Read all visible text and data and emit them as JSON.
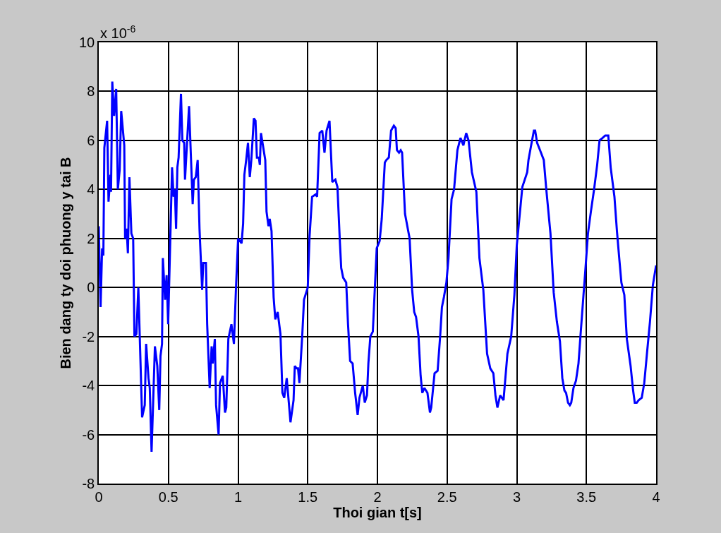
{
  "chart_data": {
    "type": "line",
    "xlabel": "Thoi gian t[s]",
    "ylabel": "Bien dang ty doi phuong y tai B",
    "annotations": [
      "x 10$^{-6}$"
    ],
    "x": [
      0,
      0.013,
      0.024,
      0.033,
      0.04,
      0.06,
      0.07,
      0.084,
      0.088,
      0.097,
      0.11,
      0.125,
      0.137,
      0.15,
      0.161,
      0.183,
      0.189,
      0.2,
      0.209,
      0.22,
      0.234,
      0.247,
      0.256,
      0.27,
      0.284,
      0.311,
      0.33,
      0.34,
      0.357,
      0.366,
      0.379,
      0.403,
      0.42,
      0.434,
      0.443,
      0.454,
      0.46,
      0.476,
      0.487,
      0.498,
      0.513,
      0.526,
      0.537,
      0.546,
      0.555,
      0.564,
      0.573,
      0.59,
      0.6,
      0.613,
      0.619,
      0.648,
      0.674,
      0.683,
      0.696,
      0.71,
      0.723,
      0.742,
      0.75,
      0.769,
      0.778,
      0.796,
      0.81,
      0.818,
      0.833,
      0.842,
      0.86,
      0.87,
      0.89,
      0.906,
      0.915,
      0.93,
      0.952,
      0.97,
      0.985,
      1.0,
      1.025,
      1.036,
      1.045,
      1.058,
      1.071,
      1.084,
      1.095,
      1.113,
      1.125,
      1.135,
      1.149,
      1.156,
      1.164,
      1.195,
      1.204,
      1.218,
      1.227,
      1.24,
      1.255,
      1.267,
      1.284,
      1.304,
      1.318,
      1.331,
      1.349,
      1.376,
      1.398,
      1.407,
      1.42,
      1.43,
      1.44,
      1.46,
      1.473,
      1.5,
      1.513,
      1.531,
      1.558,
      1.567,
      1.585,
      1.604,
      1.62,
      1.635,
      1.656,
      1.676,
      1.698,
      1.713,
      1.731,
      1.74,
      1.754,
      1.776,
      1.789,
      1.804,
      1.822,
      1.84,
      1.858,
      1.871,
      1.895,
      1.909,
      1.925,
      1.935,
      1.949,
      1.967,
      1.98,
      1.995,
      2.016,
      2.031,
      2.053,
      2.064,
      2.082,
      2.098,
      2.118,
      2.131,
      2.14,
      2.155,
      2.167,
      2.177,
      2.198,
      2.231,
      2.249,
      2.264,
      2.277,
      2.295,
      2.31,
      2.322,
      2.337,
      2.359,
      2.377,
      2.386,
      2.41,
      2.432,
      2.45,
      2.463,
      2.477,
      2.495,
      2.51,
      2.532,
      2.55,
      2.574,
      2.596,
      2.617,
      2.637,
      2.654,
      2.678,
      2.71,
      2.732,
      2.76,
      2.787,
      2.81,
      2.832,
      2.847,
      2.861,
      2.881,
      2.905,
      2.933,
      2.96,
      2.983,
      3.0,
      3.04,
      3.075,
      3.084,
      3.1,
      3.123,
      3.132,
      3.146,
      3.167,
      3.194,
      3.212,
      3.242,
      3.265,
      3.288,
      3.31,
      3.327,
      3.342,
      3.354,
      3.368,
      3.381,
      3.391,
      3.407,
      3.425,
      3.443,
      3.457,
      3.479,
      3.491,
      3.511,
      3.532,
      3.555,
      3.577,
      3.594,
      3.616,
      3.635,
      3.657,
      3.674,
      3.701,
      3.719,
      3.737,
      3.751,
      3.772,
      3.79,
      3.817,
      3.835,
      3.847,
      3.861,
      3.875,
      3.897,
      3.915,
      3.936,
      3.956,
      3.977,
      4.0
    ],
    "series": [
      {
        "color": "#0000ff",
        "values": [
          2.5,
          -0.8,
          1.6,
          1.3,
          5.7,
          6.8,
          3.5,
          4.6,
          3.9,
          8.4,
          7.0,
          8.1,
          4.0,
          4.8,
          7.2,
          5.8,
          2.0,
          2.4,
          1.4,
          4.5,
          2.2,
          2.0,
          -2.0,
          -1.9,
          0.0,
          -5.3,
          -4.8,
          -2.3,
          -3.7,
          -4.1,
          -6.7,
          -2.4,
          -3.2,
          -5.0,
          -2.8,
          -2.3,
          1.2,
          -0.5,
          0.5,
          -1.5,
          1.9,
          4.9,
          3.7,
          4.0,
          2.4,
          4.9,
          5.3,
          7.9,
          6.0,
          5.9,
          4.4,
          7.4,
          3.4,
          4.4,
          4.5,
          5.2,
          2.4,
          -0.1,
          1.0,
          1.0,
          -1.5,
          -4.1,
          -2.4,
          -3.1,
          -2.1,
          -4.8,
          -6.0,
          -3.9,
          -3.6,
          -5.1,
          -4.9,
          -2.1,
          -1.5,
          -2.3,
          0.0,
          2.0,
          1.8,
          2.6,
          4.6,
          5.2,
          5.9,
          4.5,
          5.2,
          6.9,
          6.8,
          5.3,
          5.3,
          5.0,
          6.3,
          5.2,
          3.1,
          2.5,
          2.8,
          2.3,
          -0.4,
          -1.3,
          -1.0,
          -1.9,
          -4.3,
          -4.5,
          -3.7,
          -5.5,
          -4.6,
          -3.2,
          -3.3,
          -3.3,
          -3.9,
          -2.0,
          -0.5,
          0.0,
          2.1,
          3.7,
          3.8,
          3.7,
          6.3,
          6.4,
          5.5,
          6.4,
          6.8,
          4.3,
          4.4,
          4.1,
          1.8,
          0.8,
          0.4,
          0.2,
          -1.5,
          -3.0,
          -3.1,
          -4.3,
          -5.2,
          -4.5,
          -4.0,
          -4.7,
          -4.4,
          -3.1,
          -2.0,
          -1.8,
          -0.2,
          1.6,
          1.9,
          2.8,
          5.1,
          5.2,
          5.3,
          6.4,
          6.6,
          6.5,
          5.6,
          5.5,
          5.6,
          5.5,
          3.0,
          2.0,
          -0.1,
          -1.0,
          -1.2,
          -2.0,
          -3.6,
          -4.3,
          -4.1,
          -4.3,
          -5.1,
          -4.9,
          -3.5,
          -3.4,
          -2.0,
          -0.8,
          -0.4,
          0.2,
          1.2,
          3.6,
          4.0,
          5.6,
          6.1,
          5.8,
          6.3,
          6.0,
          4.7,
          3.9,
          1.2,
          -0.1,
          -2.7,
          -3.3,
          -3.5,
          -4.4,
          -4.9,
          -4.4,
          -4.6,
          -2.7,
          -2.0,
          -0.3,
          1.7,
          4.1,
          4.7,
          5.2,
          5.7,
          6.4,
          6.4,
          5.9,
          5.6,
          5.2,
          4.0,
          2.2,
          -0.2,
          -1.4,
          -2.2,
          -3.7,
          -4.2,
          -4.3,
          -4.7,
          -4.8,
          -4.7,
          -4.1,
          -3.8,
          -3.1,
          -2.0,
          -0.3,
          0.6,
          2.2,
          3.1,
          4.0,
          5.0,
          6.0,
          6.1,
          6.2,
          6.2,
          4.9,
          3.7,
          2.3,
          1.1,
          0.2,
          -0.3,
          -2.1,
          -3.2,
          -4.2,
          -4.7,
          -4.7,
          -4.6,
          -4.5,
          -3.9,
          -2.6,
          -1.4,
          0.1,
          0.9
        ]
      }
    ],
    "xlim": [
      0,
      4
    ],
    "ylim": [
      -8,
      10
    ],
    "xticks": [
      0,
      {
        "value": 0.5,
        "label": "0.5"
      },
      1,
      {
        "value": 1.5,
        "label": "1.5"
      },
      2,
      {
        "value": 2.5,
        "label": "2.5"
      },
      3,
      {
        "value": 3.5,
        "label": "3.5"
      },
      4
    ],
    "yticks": [
      -8,
      -6,
      -4,
      -2,
      0,
      2,
      4,
      6,
      8,
      10
    ],
    "grid": true,
    "line_style": "solid"
  }
}
